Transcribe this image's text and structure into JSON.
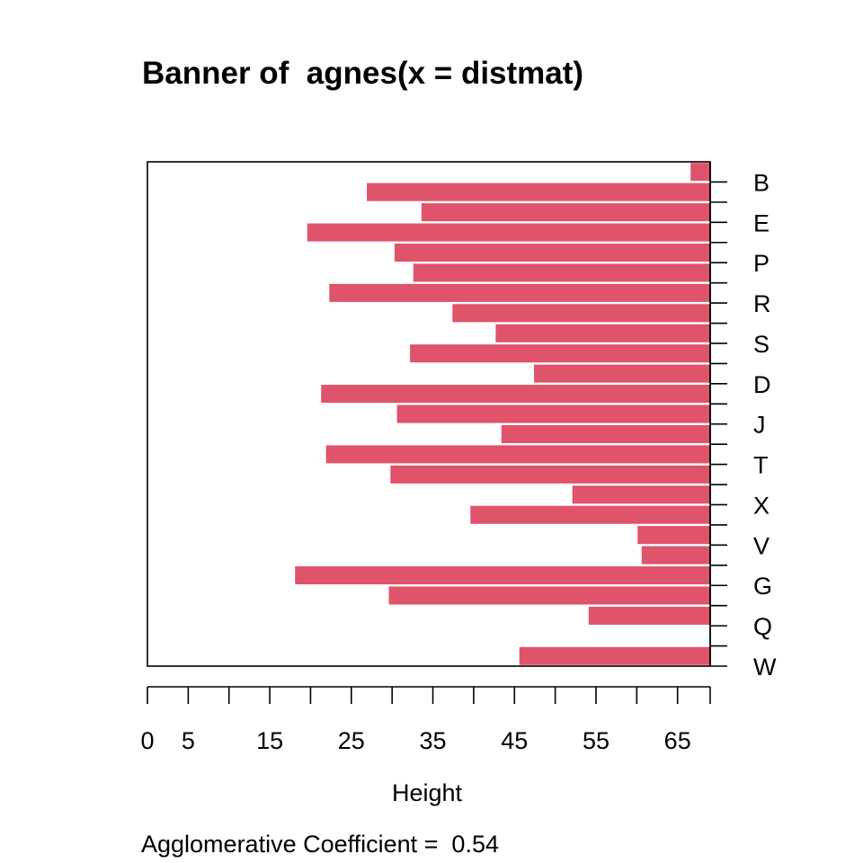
{
  "chart_data": {
    "type": "bar",
    "orientation": "horizontal",
    "title": "Banner of  agnes(x = distmat)",
    "xlabel": "Height",
    "footer": "Agglomerative Coefficient =  0.54",
    "xlim": [
      0,
      69
    ],
    "xticks": [
      0,
      5,
      10,
      15,
      20,
      25,
      30,
      35,
      40,
      45,
      50,
      55,
      60,
      65,
      69
    ],
    "xtick_labels": [
      "0",
      "5",
      "15",
      "25",
      "35",
      "45",
      "55",
      "65"
    ],
    "xtick_label_values": [
      0,
      5,
      15,
      25,
      35,
      45,
      55,
      65
    ],
    "merge_heights": [
      66.6,
      26.9,
      33.6,
      19.6,
      30.3,
      32.6,
      22.3,
      37.4,
      42.7,
      32.2,
      47.4,
      21.3,
      30.6,
      43.4,
      21.9,
      29.8,
      52.1,
      39.6,
      60.1,
      60.6,
      18.1,
      29.6,
      54.1,
      null,
      45.6
    ],
    "tick_labels": [
      "B",
      "E",
      "P",
      "R",
      "S",
      "D",
      "J",
      "T",
      "X",
      "V",
      "G",
      "Q",
      "W"
    ],
    "bar_color": "#df536b",
    "axis_color": "#000000",
    "background": "#ffffff"
  }
}
